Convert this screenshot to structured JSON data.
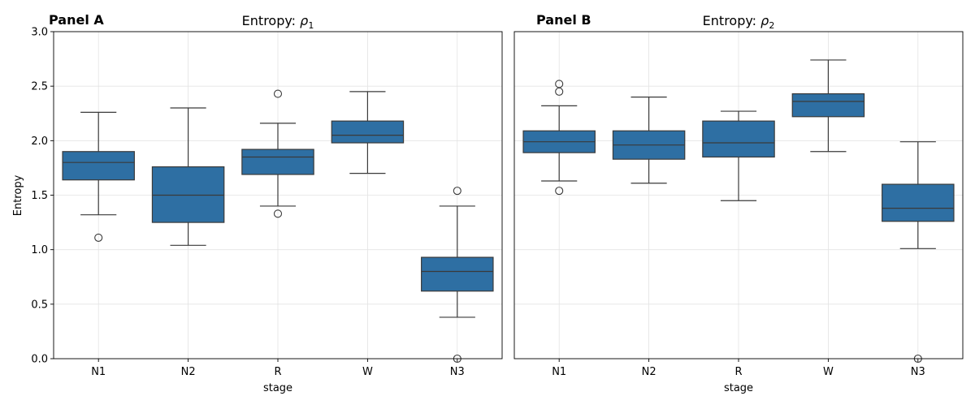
{
  "chart_data": [
    {
      "type": "box",
      "panel_label": "Panel A",
      "title_text": "Entropy: ",
      "title_symbol": "ρ",
      "title_subscript": "1",
      "xlabel": "stage",
      "ylabel": "Entropy",
      "ylim": [
        0,
        3.0
      ],
      "yticks": [
        "0.0",
        "0.5",
        "1.0",
        "1.5",
        "2.0",
        "2.5",
        "3.0"
      ],
      "grid": true,
      "box_color": "#2e6fa3",
      "categories": [
        "N1",
        "N2",
        "R",
        "W",
        "N3"
      ],
      "boxes": [
        {
          "stage": "N1",
          "whisker_low": 1.32,
          "q1": 1.64,
          "median": 1.8,
          "q3": 1.9,
          "whisker_high": 2.26,
          "outliers": [
            1.11
          ]
        },
        {
          "stage": "N2",
          "whisker_low": 1.04,
          "q1": 1.25,
          "median": 1.5,
          "q3": 1.76,
          "whisker_high": 2.3,
          "outliers": []
        },
        {
          "stage": "R",
          "whisker_low": 1.4,
          "q1": 1.69,
          "median": 1.85,
          "q3": 1.92,
          "whisker_high": 2.16,
          "outliers": [
            1.33,
            2.43
          ]
        },
        {
          "stage": "W",
          "whisker_low": 1.7,
          "q1": 1.98,
          "median": 2.05,
          "q3": 2.18,
          "whisker_high": 2.45,
          "outliers": []
        },
        {
          "stage": "N3",
          "whisker_low": 0.38,
          "q1": 0.62,
          "median": 0.8,
          "q3": 0.93,
          "whisker_high": 1.4,
          "outliers": [
            1.54,
            0.0
          ]
        }
      ]
    },
    {
      "type": "box",
      "panel_label": "Panel B",
      "title_text": "Entropy: ",
      "title_symbol": "ρ",
      "title_subscript": "2",
      "xlabel": "stage",
      "ylabel": "",
      "ylim": [
        0,
        3.0
      ],
      "yticks": [],
      "grid": true,
      "box_color": "#2e6fa3",
      "categories": [
        "N1",
        "N2",
        "R",
        "W",
        "N3"
      ],
      "boxes": [
        {
          "stage": "N1",
          "whisker_low": 1.63,
          "q1": 1.89,
          "median": 1.99,
          "q3": 2.09,
          "whisker_high": 2.32,
          "outliers": [
            1.54,
            2.45,
            2.52
          ]
        },
        {
          "stage": "N2",
          "whisker_low": 1.61,
          "q1": 1.83,
          "median": 1.96,
          "q3": 2.09,
          "whisker_high": 2.4,
          "outliers": []
        },
        {
          "stage": "R",
          "whisker_low": 1.45,
          "q1": 1.85,
          "median": 1.98,
          "q3": 2.18,
          "whisker_high": 2.27,
          "outliers": []
        },
        {
          "stage": "W",
          "whisker_low": 1.9,
          "q1": 2.22,
          "median": 2.36,
          "q3": 2.43,
          "whisker_high": 2.74,
          "outliers": []
        },
        {
          "stage": "N3",
          "whisker_low": 1.01,
          "q1": 1.26,
          "median": 1.38,
          "q3": 1.6,
          "whisker_high": 1.99,
          "outliers": [
            0.0
          ]
        }
      ]
    }
  ]
}
